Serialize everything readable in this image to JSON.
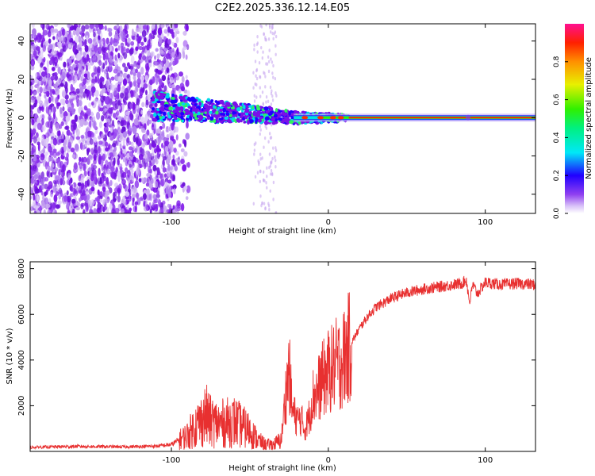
{
  "figure_title": "C2E2.2025.336.12.14.E05",
  "chart_data": [
    {
      "type": "heatmap",
      "title": "C2E2.2025.336.12.14.E05",
      "xlabel": "Height of straight line (km)",
      "ylabel": "Frequency (Hz)",
      "xlim": [
        -190,
        132
      ],
      "ylim": [
        -50,
        49
      ],
      "xticks": [
        -100,
        0,
        100
      ],
      "xtick_labels": [
        "-100",
        "0",
        "100"
      ],
      "yticks": [
        -40,
        -20,
        0,
        20,
        40
      ],
      "ytick_labels": [
        "-40",
        "-20",
        "0",
        "20",
        "40"
      ],
      "colorbar": {
        "label": "Normalized spectral amplitude",
        "range": [
          0,
          1
        ],
        "ticks": [
          0,
          0.2,
          0.4,
          0.6,
          0.8
        ],
        "tick_labels": [
          "0.0",
          "0.2",
          "0.4",
          "0.6",
          "0.8"
        ],
        "colors": [
          "#ffffff",
          "#c8a8f0",
          "#7a10e8",
          "#0000ff",
          "#00e8e8",
          "#00e800",
          "#e8e800",
          "#ff8000",
          "#ff0000",
          "#ff0080"
        ]
      },
      "features": {
        "noise_region_x": [
          -190,
          -97
        ],
        "trail_region_x": [
          -112,
          13
        ],
        "carrier_line_x": [
          13,
          132
        ],
        "carrier_frequency": 0,
        "sparse_column_x": [
          -48,
          -33
        ]
      }
    },
    {
      "type": "line",
      "xlabel": "Height of straight line (km)",
      "ylabel": "SNR (10 * v/v)",
      "xlim": [
        -190,
        132
      ],
      "ylim": [
        0,
        8300
      ],
      "xticks": [
        -100,
        0,
        100
      ],
      "xtick_labels": [
        "-100",
        "0",
        "100"
      ],
      "yticks": [
        2000,
        4000,
        6000,
        8000
      ],
      "ytick_labels": [
        "2000",
        "4000",
        "6000",
        "8000"
      ],
      "line_color": "#e83030",
      "series": [
        {
          "name": "SNR",
          "x": [
            -190,
            -160,
            -130,
            -110,
            -100,
            -90,
            -85,
            -80,
            -78,
            -75,
            -70,
            -65,
            -60,
            -55,
            -50,
            -45,
            -40,
            -35,
            -30,
            -27,
            -25,
            -23,
            -20,
            -17,
            -15,
            -12,
            -10,
            -7,
            -5,
            -2,
            0,
            2,
            5,
            8,
            10,
            12,
            15,
            20,
            25,
            30,
            35,
            40,
            50,
            60,
            70,
            80,
            85,
            88,
            90,
            92,
            95,
            100,
            110,
            120,
            132
          ],
          "y": [
            180,
            220,
            200,
            230,
            300,
            700,
            1100,
            1400,
            1600,
            1300,
            1200,
            1250,
            1300,
            1100,
            900,
            500,
            300,
            300,
            500,
            2600,
            3600,
            1800,
            1400,
            1400,
            900,
            1600,
            2400,
            2600,
            3000,
            3300,
            3500,
            3600,
            3800,
            3900,
            4100,
            4400,
            4800,
            5400,
            5900,
            6300,
            6500,
            6700,
            6950,
            7100,
            7200,
            7300,
            7350,
            7500,
            6500,
            7300,
            6900,
            7400,
            7300,
            7350,
            7300
          ]
        }
      ]
    }
  ]
}
